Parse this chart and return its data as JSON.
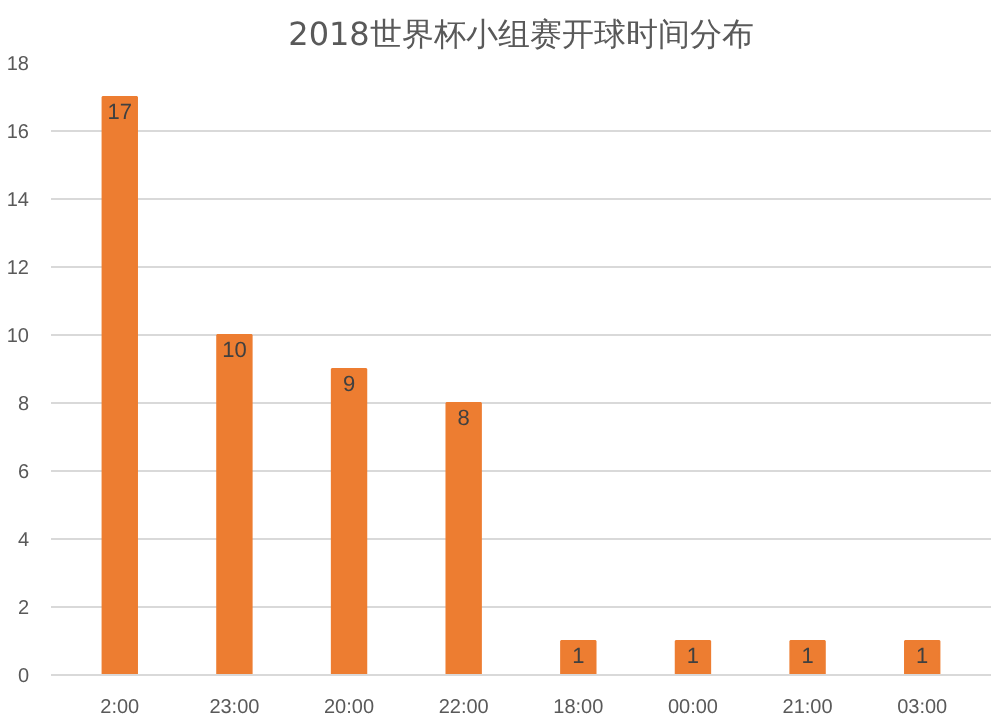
{
  "chart_data": {
    "type": "bar",
    "title": "2018世界杯小组赛开球时间分布",
    "categories": [
      "2:00",
      "23:00",
      "20:00",
      "22:00",
      "18:00",
      "00:00",
      "21:00",
      "03:00"
    ],
    "values": [
      17,
      10,
      9,
      8,
      1,
      1,
      1,
      1
    ],
    "color": "#ed7d31",
    "ylim": [
      0,
      18
    ],
    "yticks": [
      0,
      2,
      4,
      6,
      8,
      10,
      12,
      14,
      16,
      18
    ],
    "grid": "y",
    "data_labels": true
  }
}
